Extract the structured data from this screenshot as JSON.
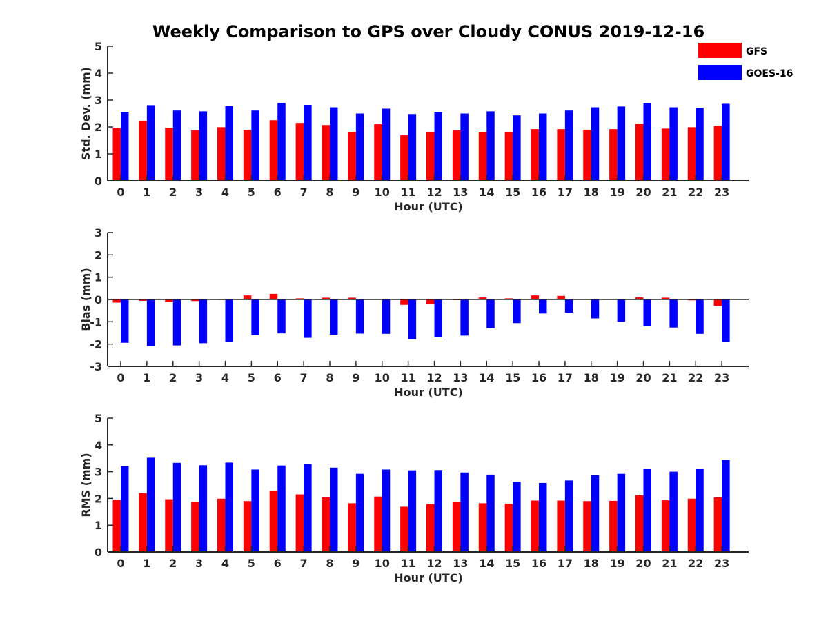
{
  "title": "Weekly Comparison to GPS over Cloudy CONUS 2019-12-16",
  "chart_data": [
    {
      "type": "bar",
      "xlabel": "Hour (UTC)",
      "ylabel": "Std. Dev. (mm)",
      "ylim": [
        0,
        5
      ],
      "yticks": [
        0,
        1,
        2,
        3,
        4,
        5
      ],
      "categories": [
        "0",
        "1",
        "2",
        "3",
        "4",
        "5",
        "6",
        "7",
        "8",
        "9",
        "10",
        "11",
        "12",
        "13",
        "14",
        "15",
        "16",
        "17",
        "18",
        "19",
        "20",
        "21",
        "22",
        "23"
      ],
      "series": [
        {
          "name": "GFS",
          "color": "#ff0000",
          "values": [
            1.95,
            2.22,
            1.97,
            1.87,
            1.99,
            1.89,
            2.25,
            2.15,
            2.07,
            1.82,
            2.1,
            1.69,
            1.8,
            1.87,
            1.82,
            1.8,
            1.92,
            1.92,
            1.9,
            1.92,
            2.12,
            1.94,
            1.99,
            2.04
          ]
        },
        {
          "name": "GOES-16",
          "color": "#0000ff",
          "values": [
            2.56,
            2.81,
            2.61,
            2.58,
            2.77,
            2.61,
            2.89,
            2.82,
            2.73,
            2.5,
            2.68,
            2.48,
            2.56,
            2.5,
            2.58,
            2.43,
            2.5,
            2.61,
            2.73,
            2.76,
            2.89,
            2.73,
            2.71,
            2.86
          ]
        }
      ]
    },
    {
      "type": "bar",
      "xlabel": "Hour (UTC)",
      "ylabel": "Bias (mm)",
      "ylim": [
        -3,
        3
      ],
      "yticks": [
        -3,
        -2,
        -1,
        0,
        1,
        2,
        3
      ],
      "categories": [
        "0",
        "1",
        "2",
        "3",
        "4",
        "5",
        "6",
        "7",
        "8",
        "9",
        "10",
        "11",
        "12",
        "13",
        "14",
        "15",
        "16",
        "17",
        "18",
        "19",
        "20",
        "21",
        "22",
        "23"
      ],
      "series": [
        {
          "name": "GFS",
          "color": "#ff0000",
          "values": [
            -0.14,
            -0.06,
            -0.12,
            -0.07,
            -0.02,
            0.18,
            0.25,
            0.05,
            0.08,
            0.08,
            0.0,
            -0.24,
            -0.19,
            -0.03,
            0.09,
            0.05,
            0.18,
            0.16,
            0.0,
            0.0,
            0.09,
            0.08,
            -0.04,
            -0.29
          ]
        },
        {
          "name": "GOES-16",
          "color": "#0000ff",
          "values": [
            -1.94,
            -2.09,
            -2.06,
            -1.96,
            -1.91,
            -1.6,
            -1.52,
            -1.72,
            -1.58,
            -1.53,
            -1.54,
            -1.78,
            -1.7,
            -1.62,
            -1.29,
            -1.06,
            -0.63,
            -0.59,
            -0.85,
            -1.0,
            -1.2,
            -1.26,
            -1.54,
            -1.91
          ]
        }
      ]
    },
    {
      "type": "bar",
      "xlabel": "Hour (UTC)",
      "ylabel": "RMS (mm)",
      "ylim": [
        0,
        5
      ],
      "yticks": [
        0,
        1,
        2,
        3,
        4,
        5
      ],
      "categories": [
        "0",
        "1",
        "2",
        "3",
        "4",
        "5",
        "6",
        "7",
        "8",
        "9",
        "10",
        "11",
        "12",
        "13",
        "14",
        "15",
        "16",
        "17",
        "18",
        "19",
        "20",
        "21",
        "22",
        "23"
      ],
      "series": [
        {
          "name": "GFS",
          "color": "#ff0000",
          "values": [
            1.95,
            2.2,
            1.97,
            1.87,
            1.99,
            1.9,
            2.28,
            2.15,
            2.04,
            1.82,
            2.07,
            1.69,
            1.79,
            1.87,
            1.82,
            1.8,
            1.92,
            1.92,
            1.9,
            1.91,
            2.12,
            1.93,
            1.99,
            2.04
          ]
        },
        {
          "name": "GOES-16",
          "color": "#0000ff",
          "values": [
            3.2,
            3.52,
            3.33,
            3.24,
            3.34,
            3.08,
            3.23,
            3.29,
            3.15,
            2.92,
            3.08,
            3.05,
            3.06,
            2.97,
            2.89,
            2.63,
            2.58,
            2.67,
            2.87,
            2.92,
            3.1,
            3.0,
            3.1,
            3.44
          ]
        }
      ]
    }
  ],
  "legend": {
    "placement": "top-right",
    "entries": [
      {
        "label": "GFS",
        "color": "#ff0000"
      },
      {
        "label": "GOES-16",
        "color": "#0000ff"
      }
    ]
  }
}
